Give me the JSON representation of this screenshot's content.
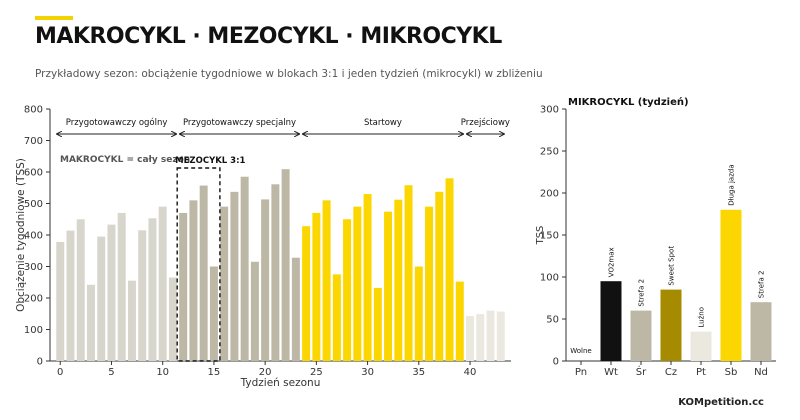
{
  "header": {
    "title": "MAKROCYKL · MEZOCYKL · MIKROCYKL",
    "subtitle": "Przykładowy sezon: obciążenie tygodniowe w blokach 3:1 i jeden tydzień (mikrocykl) w zbliżeniu"
  },
  "brand": "KOMpetition.cc",
  "colors": {
    "accent": "#f2d200",
    "ogolny": "#d8d6cc",
    "specjalny": "#bdb8a5",
    "startowy": "#fcd600",
    "przejsciowy": "#ebe8e0",
    "wt": "#111111",
    "cz": "#a68b00"
  },
  "chart_data": [
    {
      "type": "bar",
      "xlabel": "Tydzień sezonu",
      "ylabel": "Obciążenie tygodniowe (TSS)",
      "ylim": [
        0,
        800
      ],
      "xlim": [
        -1,
        44
      ],
      "yticks": [
        0,
        100,
        200,
        300,
        400,
        500,
        600,
        700,
        800
      ],
      "xticks": [
        0,
        5,
        10,
        15,
        20,
        25,
        30,
        35,
        40
      ],
      "weeks": [
        0,
        1,
        2,
        3,
        4,
        5,
        6,
        7,
        8,
        9,
        10,
        11,
        12,
        13,
        14,
        15,
        16,
        17,
        18,
        19,
        20,
        21,
        22,
        23,
        24,
        25,
        26,
        27,
        28,
        29,
        30,
        31,
        32,
        33,
        34,
        35,
        36,
        37,
        38,
        39,
        40,
        41,
        42,
        43
      ],
      "values": [
        378,
        414,
        450,
        242,
        395,
        433,
        470,
        255,
        415,
        453,
        490,
        265,
        470,
        510,
        557,
        300,
        490,
        537,
        585,
        315,
        513,
        561,
        609,
        328,
        428,
        470,
        510,
        275,
        450,
        490,
        530,
        232,
        474,
        512,
        558,
        300,
        490,
        537,
        580,
        252,
        143,
        149,
        160,
        157
      ],
      "phases": [
        {
          "name": "Przygotowawczy ogólny",
          "start": 0,
          "end": 11,
          "color": "#d8d6cc"
        },
        {
          "name": "Przygotowawczy specjalny",
          "start": 12,
          "end": 23,
          "color": "#bdb8a5"
        },
        {
          "name": "Startowy",
          "start": 24,
          "end": 39,
          "color": "#fcd600"
        },
        {
          "name": "Przejściowy",
          "start": 40,
          "end": 43,
          "color": "#ebe8e0"
        }
      ],
      "annotations": {
        "makro": "MAKROCYKL = cały sezon",
        "mezo": "MEZOCYKL 3:1",
        "mezo_weeks": [
          12,
          15
        ]
      }
    },
    {
      "type": "bar",
      "title": "MIKROCYKL (tydzień)",
      "ylabel": "TSS",
      "ylim": [
        0,
        300
      ],
      "yticks": [
        0,
        50,
        100,
        150,
        200,
        250,
        300
      ],
      "categories": [
        "Pn",
        "Wt",
        "Śr",
        "Cz",
        "Pt",
        "Sb",
        "Nd"
      ],
      "values": [
        0,
        95,
        60,
        85,
        35,
        180,
        70
      ],
      "labels": [
        "Wolne",
        "VO2max",
        "Strefa 2",
        "Sweet Spot",
        "Luźno",
        "Długa jazda",
        "Strefa 2"
      ],
      "colors": [
        "#dddddd",
        "#111111",
        "#bdb8a5",
        "#a68b00",
        "#ebe8e0",
        "#fcd600",
        "#bdb8a5"
      ]
    }
  ]
}
